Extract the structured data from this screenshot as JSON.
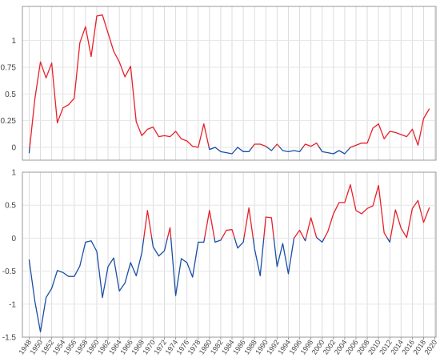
{
  "chart_data": [
    {
      "type": "line",
      "panel": "top",
      "x": [
        1948,
        1949,
        1950,
        1951,
        1952,
        1953,
        1954,
        1955,
        1956,
        1957,
        1958,
        1959,
        1960,
        1961,
        1962,
        1963,
        1964,
        1965,
        1966,
        1967,
        1968,
        1969,
        1970,
        1971,
        1972,
        1973,
        1974,
        1975,
        1976,
        1977,
        1978,
        1979,
        1980,
        1981,
        1982,
        1983,
        1984,
        1985,
        1986,
        1987,
        1988,
        1989,
        1990,
        1991,
        1992,
        1993,
        1994,
        1995,
        1996,
        1997,
        1998,
        1999,
        2000,
        2001,
        2002,
        2003,
        2004,
        2005,
        2006,
        2007,
        2008,
        2009,
        2010,
        2011,
        2012,
        2013,
        2014,
        2015,
        2016,
        2017,
        2018,
        2019
      ],
      "values": [
        -0.05,
        0.45,
        0.8,
        0.65,
        0.79,
        0.23,
        0.37,
        0.4,
        0.46,
        0.98,
        1.13,
        0.85,
        1.23,
        1.24,
        1.07,
        0.9,
        0.8,
        0.66,
        0.76,
        0.24,
        0.11,
        0.17,
        0.19,
        0.1,
        0.11,
        0.1,
        0.15,
        0.08,
        0.06,
        0.01,
        0.0,
        0.22,
        -0.02,
        0.0,
        -0.04,
        -0.05,
        -0.06,
        0.0,
        -0.04,
        -0.04,
        0.03,
        0.03,
        0.01,
        -0.03,
        0.03,
        -0.03,
        -0.04,
        -0.03,
        -0.04,
        0.03,
        0.01,
        0.04,
        -0.04,
        -0.05,
        -0.06,
        -0.03,
        -0.06,
        0.0,
        0.02,
        0.04,
        0.04,
        0.18,
        0.22,
        0.08,
        0.15,
        0.14,
        0.12,
        0.1,
        0.17,
        0.02,
        0.27,
        0.36
      ],
      "ylim": [
        -0.12,
        1.32
      ],
      "yticks": [
        0,
        0.25,
        0.5,
        0.75,
        1
      ],
      "ytick_labels": [
        "0",
        "0.25",
        "0.5",
        "0.75",
        "1"
      ],
      "positive_color": "#e8202a",
      "negative_color": "#1a4fa6"
    },
    {
      "type": "line",
      "panel": "bottom",
      "x": [
        1948,
        1949,
        1950,
        1951,
        1952,
        1953,
        1954,
        1955,
        1956,
        1957,
        1958,
        1959,
        1960,
        1961,
        1962,
        1963,
        1964,
        1965,
        1966,
        1967,
        1968,
        1969,
        1970,
        1971,
        1972,
        1973,
        1974,
        1975,
        1976,
        1977,
        1978,
        1979,
        1980,
        1981,
        1982,
        1983,
        1984,
        1985,
        1986,
        1987,
        1988,
        1989,
        1990,
        1991,
        1992,
        1993,
        1994,
        1995,
        1996,
        1997,
        1998,
        1999,
        2000,
        2001,
        2002,
        2003,
        2004,
        2005,
        2006,
        2007,
        2008,
        2009,
        2010,
        2011,
        2012,
        2013,
        2014,
        2015,
        2016,
        2017,
        2018,
        2019
      ],
      "values": [
        -0.33,
        -0.95,
        -1.42,
        -0.9,
        -0.76,
        -0.49,
        -0.52,
        -0.58,
        -0.58,
        -0.42,
        -0.06,
        -0.04,
        -0.2,
        -0.9,
        -0.43,
        -0.3,
        -0.8,
        -0.68,
        -0.37,
        -0.57,
        -0.22,
        0.42,
        -0.13,
        -0.27,
        -0.19,
        0.16,
        -0.87,
        -0.31,
        -0.37,
        -0.59,
        -0.06,
        -0.06,
        0.42,
        -0.06,
        -0.03,
        0.12,
        0.13,
        -0.15,
        -0.06,
        0.46,
        -0.16,
        -0.57,
        0.32,
        0.31,
        -0.43,
        -0.08,
        -0.54,
        0.0,
        0.12,
        -0.04,
        0.31,
        0.01,
        -0.06,
        0.1,
        0.37,
        0.54,
        0.54,
        0.81,
        0.42,
        0.37,
        0.45,
        0.49,
        0.8,
        0.08,
        -0.06,
        0.43,
        0.15,
        0.01,
        0.45,
        0.57,
        0.24,
        0.46
      ],
      "ylim": [
        -1.5,
        1.0
      ],
      "yticks": [
        -1.5,
        -1,
        -0.5,
        0,
        0.5,
        1
      ],
      "ytick_labels": [
        "-1.5",
        "-1",
        "-0.5",
        "0",
        "0.5",
        "1"
      ],
      "positive_color": "#e8202a",
      "negative_color": "#1a4fa6"
    }
  ],
  "x_axis": {
    "xlim": [
      1946.8,
      2020.2
    ],
    "ticks": [
      1948,
      1950,
      1952,
      1954,
      1956,
      1958,
      1960,
      1962,
      1964,
      1966,
      1968,
      1970,
      1972,
      1974,
      1976,
      1978,
      1980,
      1982,
      1984,
      1986,
      1988,
      1990,
      1992,
      1994,
      1996,
      1998,
      2000,
      2002,
      2004,
      2006,
      2008,
      2010,
      2012,
      2014,
      2016,
      2018,
      2020
    ],
    "tick_labels": [
      "1948",
      "1950",
      "1952",
      "1954",
      "1956",
      "1958",
      "1960",
      "1962",
      "1964",
      "1966",
      "1968",
      "1970",
      "1972",
      "1974",
      "1976",
      "1978",
      "1980",
      "1982",
      "1984",
      "1986",
      "1988",
      "1990",
      "1992",
      "1994",
      "1996",
      "1998",
      "2000",
      "2002",
      "2004",
      "2006",
      "2008",
      "2010",
      "2012",
      "2014",
      "2016",
      "2018",
      "2020"
    ],
    "grid": true
  },
  "style": {
    "grid_color": "#dddddd",
    "frame_color": "#999999",
    "label_color": "#444444"
  }
}
